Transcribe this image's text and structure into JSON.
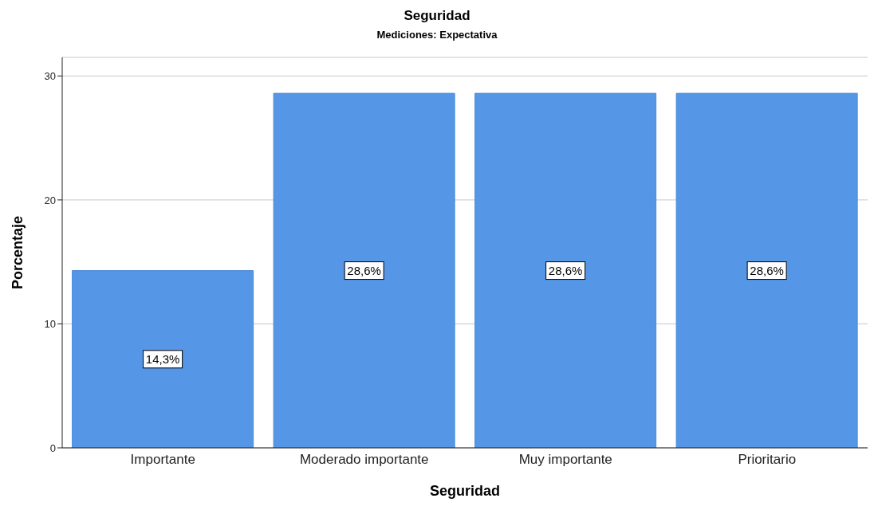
{
  "chart_data": {
    "type": "bar",
    "title": "Seguridad",
    "subtitle": "Mediciones: Expectativa",
    "xlabel": "Seguridad",
    "ylabel": "Porcentaje",
    "categories": [
      "Importante",
      "Moderado importante",
      "Muy importante",
      "Prioritario"
    ],
    "values": [
      14.3,
      28.6,
      28.6,
      28.6
    ],
    "value_labels": [
      "14,3%",
      "28,6%",
      "28,6%",
      "28,6%"
    ],
    "color": "#5596e6",
    "ylim": [
      0,
      31.5
    ],
    "yticks": [
      0,
      10,
      20,
      30
    ],
    "grid": "y"
  }
}
